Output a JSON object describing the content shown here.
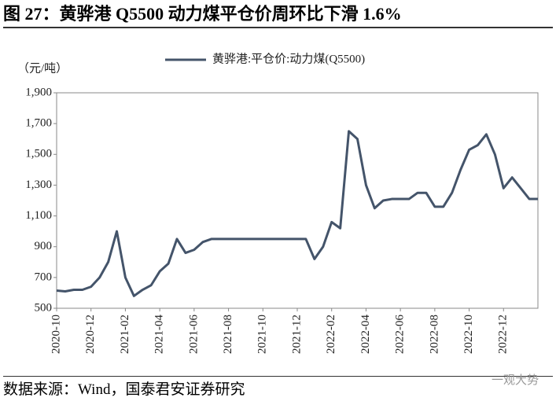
{
  "header": {
    "title": "图 27：黄骅港 Q5500 动力煤平仓价周环比下滑 1.6%"
  },
  "chart_data": {
    "type": "line",
    "unit_label": "（元/吨）",
    "categories": [
      "2020-10",
      null,
      null,
      null,
      "2020-12",
      null,
      null,
      null,
      "2021-02",
      null,
      null,
      null,
      "2021-04",
      null,
      null,
      null,
      "2021-06",
      null,
      null,
      null,
      "2021-08",
      null,
      null,
      null,
      "2021-10",
      null,
      null,
      null,
      "2021-12",
      null,
      null,
      null,
      "2022-02",
      null,
      null,
      null,
      "2022-04",
      null,
      null,
      null,
      "2022-06",
      null,
      null,
      null,
      "2022-08",
      null,
      null,
      null,
      "2022-10",
      null,
      null,
      null,
      "2022-12",
      null,
      null,
      null,
      null
    ],
    "series": [
      {
        "name": "黄骅港:平仓价:动力煤(Q5500)",
        "color": "#44546a",
        "values": [
          615,
          610,
          620,
          620,
          640,
          700,
          800,
          1000,
          700,
          580,
          620,
          650,
          740,
          790,
          950,
          860,
          880,
          930,
          950,
          950,
          950,
          950,
          950,
          950,
          950,
          950,
          950,
          950,
          950,
          950,
          820,
          900,
          1060,
          1020,
          1650,
          1600,
          1300,
          1150,
          1200,
          1210,
          1210,
          1210,
          1250,
          1250,
          1160,
          1160,
          1250,
          1400,
          1530,
          1560,
          1630,
          1500,
          1280,
          1350,
          1280,
          1210,
          1210
        ]
      }
    ],
    "ylim": [
      500,
      1900
    ],
    "yticks": [
      500,
      700,
      900,
      {
        "value": 1100,
        "label": "1,100"
      },
      {
        "value": 1300,
        "label": "1,300"
      },
      {
        "value": 1500,
        "label": "1,500"
      },
      {
        "value": 1700,
        "label": "1,700"
      },
      {
        "value": 1900,
        "label": "1,900"
      }
    ],
    "legend": "top",
    "grid": false
  },
  "footer": {
    "source": "数据来源：Wind，国泰君安证券研究",
    "watermark": "一观大势"
  }
}
